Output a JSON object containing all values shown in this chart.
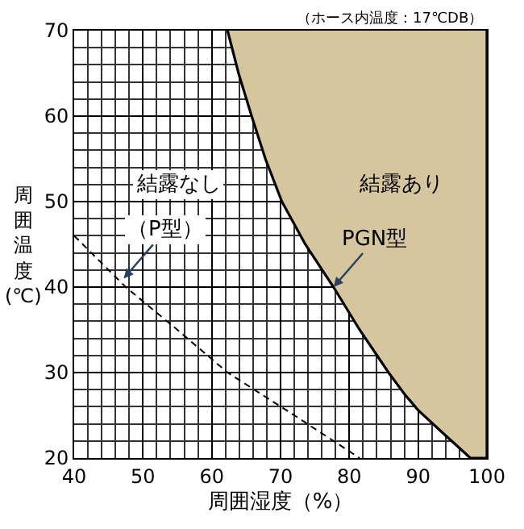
{
  "chart_data": {
    "type": "line",
    "xlabel": "周囲湿度（%）",
    "ylabel": "周囲温度(℃)",
    "xlim": [
      40,
      100
    ],
    "ylim": [
      20,
      70
    ],
    "xticks": [
      40,
      50,
      60,
      70,
      80,
      90,
      100
    ],
    "yticks": [
      20,
      30,
      40,
      50,
      60,
      70
    ],
    "grid": true,
    "marker": "none",
    "series": [
      {
        "color": "#000000",
        "line_style": "dashed",
        "x": [
          40,
          47.5,
          55,
          62.3,
          72,
          81.5
        ],
        "values": [
          46,
          40,
          35,
          30,
          25,
          20
        ]
      },
      {
        "type": "area",
        "color": "#d6c6a0",
        "x": [
          62.3,
          63.9,
          65.8,
          67.8,
          70.2,
          73.6,
          77.7,
          81.5,
          85.7,
          88,
          90,
          93.5,
          97.6,
          100,
          100
        ],
        "values": [
          70,
          65,
          60,
          55,
          50,
          45,
          40,
          35,
          30,
          27.5,
          25.6,
          23,
          20,
          20,
          70
        ]
      }
    ],
    "annotations": [
      "（ホース内温度：17℃DB）",
      "結露なし",
      "結露あり",
      {
        "text": "（P型）",
        "x": 47.2,
        "y": 41
      },
      {
        "text": "PGN型",
        "x": 77.7,
        "y": 40
      }
    ]
  }
}
